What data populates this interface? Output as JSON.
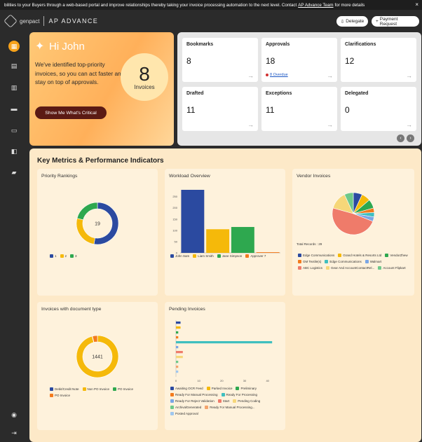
{
  "banner": {
    "text": "bilities to your Buyers through a web-based portal and improve relationships thereby taking your invoice processing automation to the next level. Contact",
    "link": "AP Advance Team",
    "suffix": "for more details",
    "close": "×"
  },
  "header": {
    "brand": "genpact",
    "product": "AP ADVANCE",
    "delegate_label": "Delegate",
    "payment_label": "Payment Request"
  },
  "sidebar": {
    "items": [
      {
        "name": "home-icon",
        "glyph": "▦",
        "active": true
      },
      {
        "name": "invoices-icon",
        "glyph": "▤"
      },
      {
        "name": "documents-icon",
        "glyph": "▥"
      },
      {
        "name": "reports-icon",
        "glyph": "▬"
      },
      {
        "name": "monitor-icon",
        "glyph": "▭"
      },
      {
        "name": "analytics-icon",
        "glyph": "◧"
      },
      {
        "name": "folder-icon",
        "glyph": "▰"
      }
    ],
    "bottom": [
      {
        "name": "user-avatar-icon",
        "glyph": "◉"
      },
      {
        "name": "logout-icon",
        "glyph": "⇥"
      }
    ]
  },
  "hero": {
    "greeting": "Hi John",
    "message": "We've identified top-priority invoices, so you can act faster and stay on top of approvals.",
    "count": "8",
    "count_label": "Invoices",
    "cta": "Show Me What's Critical"
  },
  "stats": {
    "cards": [
      {
        "title": "Bookmarks",
        "value": "8",
        "sub": ""
      },
      {
        "title": "Approvals",
        "value": "18",
        "sub": "8 Overdue"
      },
      {
        "title": "Clarifications",
        "value": "12",
        "sub": ""
      },
      {
        "title": "Drafted",
        "value": "11",
        "sub": ""
      },
      {
        "title": "Exceptions",
        "value": "11",
        "sub": ""
      },
      {
        "title": "Delegated",
        "value": "0",
        "sub": ""
      }
    ],
    "arrow": "→",
    "prev": "‹",
    "next": "›"
  },
  "metrics": {
    "title": "Key Metrics & Performance Indicators",
    "panels": {
      "priority": "Priority Rankings",
      "workload": "Workload Overview",
      "vendor": "Vendor Invoices",
      "doctype": "Invoices with document type",
      "pending": "Pending Invoices"
    },
    "vendor_total": "Total Records : 29"
  },
  "colors": {
    "blue": "#2b4aa0",
    "yellow": "#f5b90a",
    "green": "#2ea84f",
    "orange": "#f37b1d",
    "teal": "#3fbfbf",
    "lightblue": "#7aa6e6",
    "salmon": "#ef7b6a",
    "lightyellow": "#f6d779",
    "lightgreen": "#6ec98a",
    "peach": "#f4a46c"
  },
  "chart_data": [
    {
      "type": "pie",
      "title": "Priority Rankings",
      "center_label": "19",
      "series": [
        {
          "name": "1",
          "value": 10,
          "color": "#2b4aa0"
        },
        {
          "name": "2",
          "value": 5,
          "color": "#f5b90a"
        },
        {
          "name": "3",
          "value": 4,
          "color": "#2ea84f"
        }
      ]
    },
    {
      "type": "bar",
      "title": "Workload Overview",
      "categories": [
        "John Sam",
        "Liam Smith",
        "Jane Simpson",
        "Approver 7"
      ],
      "values": [
        280,
        105,
        115,
        3
      ],
      "colors": [
        "#2b4aa0",
        "#f5b90a",
        "#2ea84f",
        "#f37b1d"
      ],
      "ylim": [
        0,
        280
      ],
      "yticks": [
        0,
        50,
        100,
        150,
        200,
        250
      ]
    },
    {
      "type": "pie",
      "title": "Vendor Invoices",
      "series": [
        {
          "name": "Edge Communications",
          "value": 2,
          "color": "#2b4aa0"
        },
        {
          "name": "Grand Hotels & Resorts Ltd",
          "value": 2,
          "color": "#f5b90a"
        },
        {
          "name": "VendorZhew",
          "value": 2,
          "color": "#2ea84f"
        },
        {
          "name": "GM Textile(s)",
          "value": 1,
          "color": "#f37b1d"
        },
        {
          "name": "Edge Communications",
          "value": 1,
          "color": "#3fbfbf"
        },
        {
          "name": "Walmart",
          "value": 1,
          "color": "#7aa6e6"
        },
        {
          "name": "ABC Logistics",
          "value": 14,
          "color": "#ef7b6a"
        },
        {
          "name": "Gear And AccountContactRel...",
          "value": 4,
          "color": "#f6d779"
        },
        {
          "name": "Account Flipkart",
          "value": 2,
          "color": "#6ec98a"
        }
      ]
    },
    {
      "type": "pie",
      "title": "Invoices with document type",
      "center_label": "1441",
      "series": [
        {
          "name": "Debit/Credit Note",
          "value": 2,
          "color": "#2b4aa0"
        },
        {
          "name": "Non PO Invoice",
          "value": 1380,
          "color": "#f5b90a"
        },
        {
          "name": "PO Invoice",
          "value": 4,
          "color": "#2ea84f"
        },
        {
          "name": "PO Invoice",
          "value": 55,
          "color": "#f37b1d"
        }
      ]
    },
    {
      "type": "bar",
      "orientation": "horizontal",
      "title": "Pending Invoices",
      "categories": [
        "Awaiting OCR Feed",
        "Parked Invoice",
        "Preliminary",
        "Ready For Manual Processing",
        "Ready For Processing",
        "Ready For Reject Validation",
        "Start",
        "Pending Coding",
        "ArchivalGenerated",
        "Ready For Manual Processing...",
        "Posted Approval"
      ],
      "values": [
        2,
        2,
        1,
        1,
        42,
        1,
        3,
        3,
        1,
        1,
        1
      ],
      "colors": [
        "#2b4aa0",
        "#f5b90a",
        "#2ea84f",
        "#f37b1d",
        "#3fbfbf",
        "#7aa6e6",
        "#ef7b6a",
        "#f6d779",
        "#6ec98a",
        "#f4a46c",
        "#9fc7ef"
      ],
      "xlim": [
        0,
        45
      ],
      "xticks": [
        0,
        10,
        20,
        30,
        40
      ]
    }
  ]
}
